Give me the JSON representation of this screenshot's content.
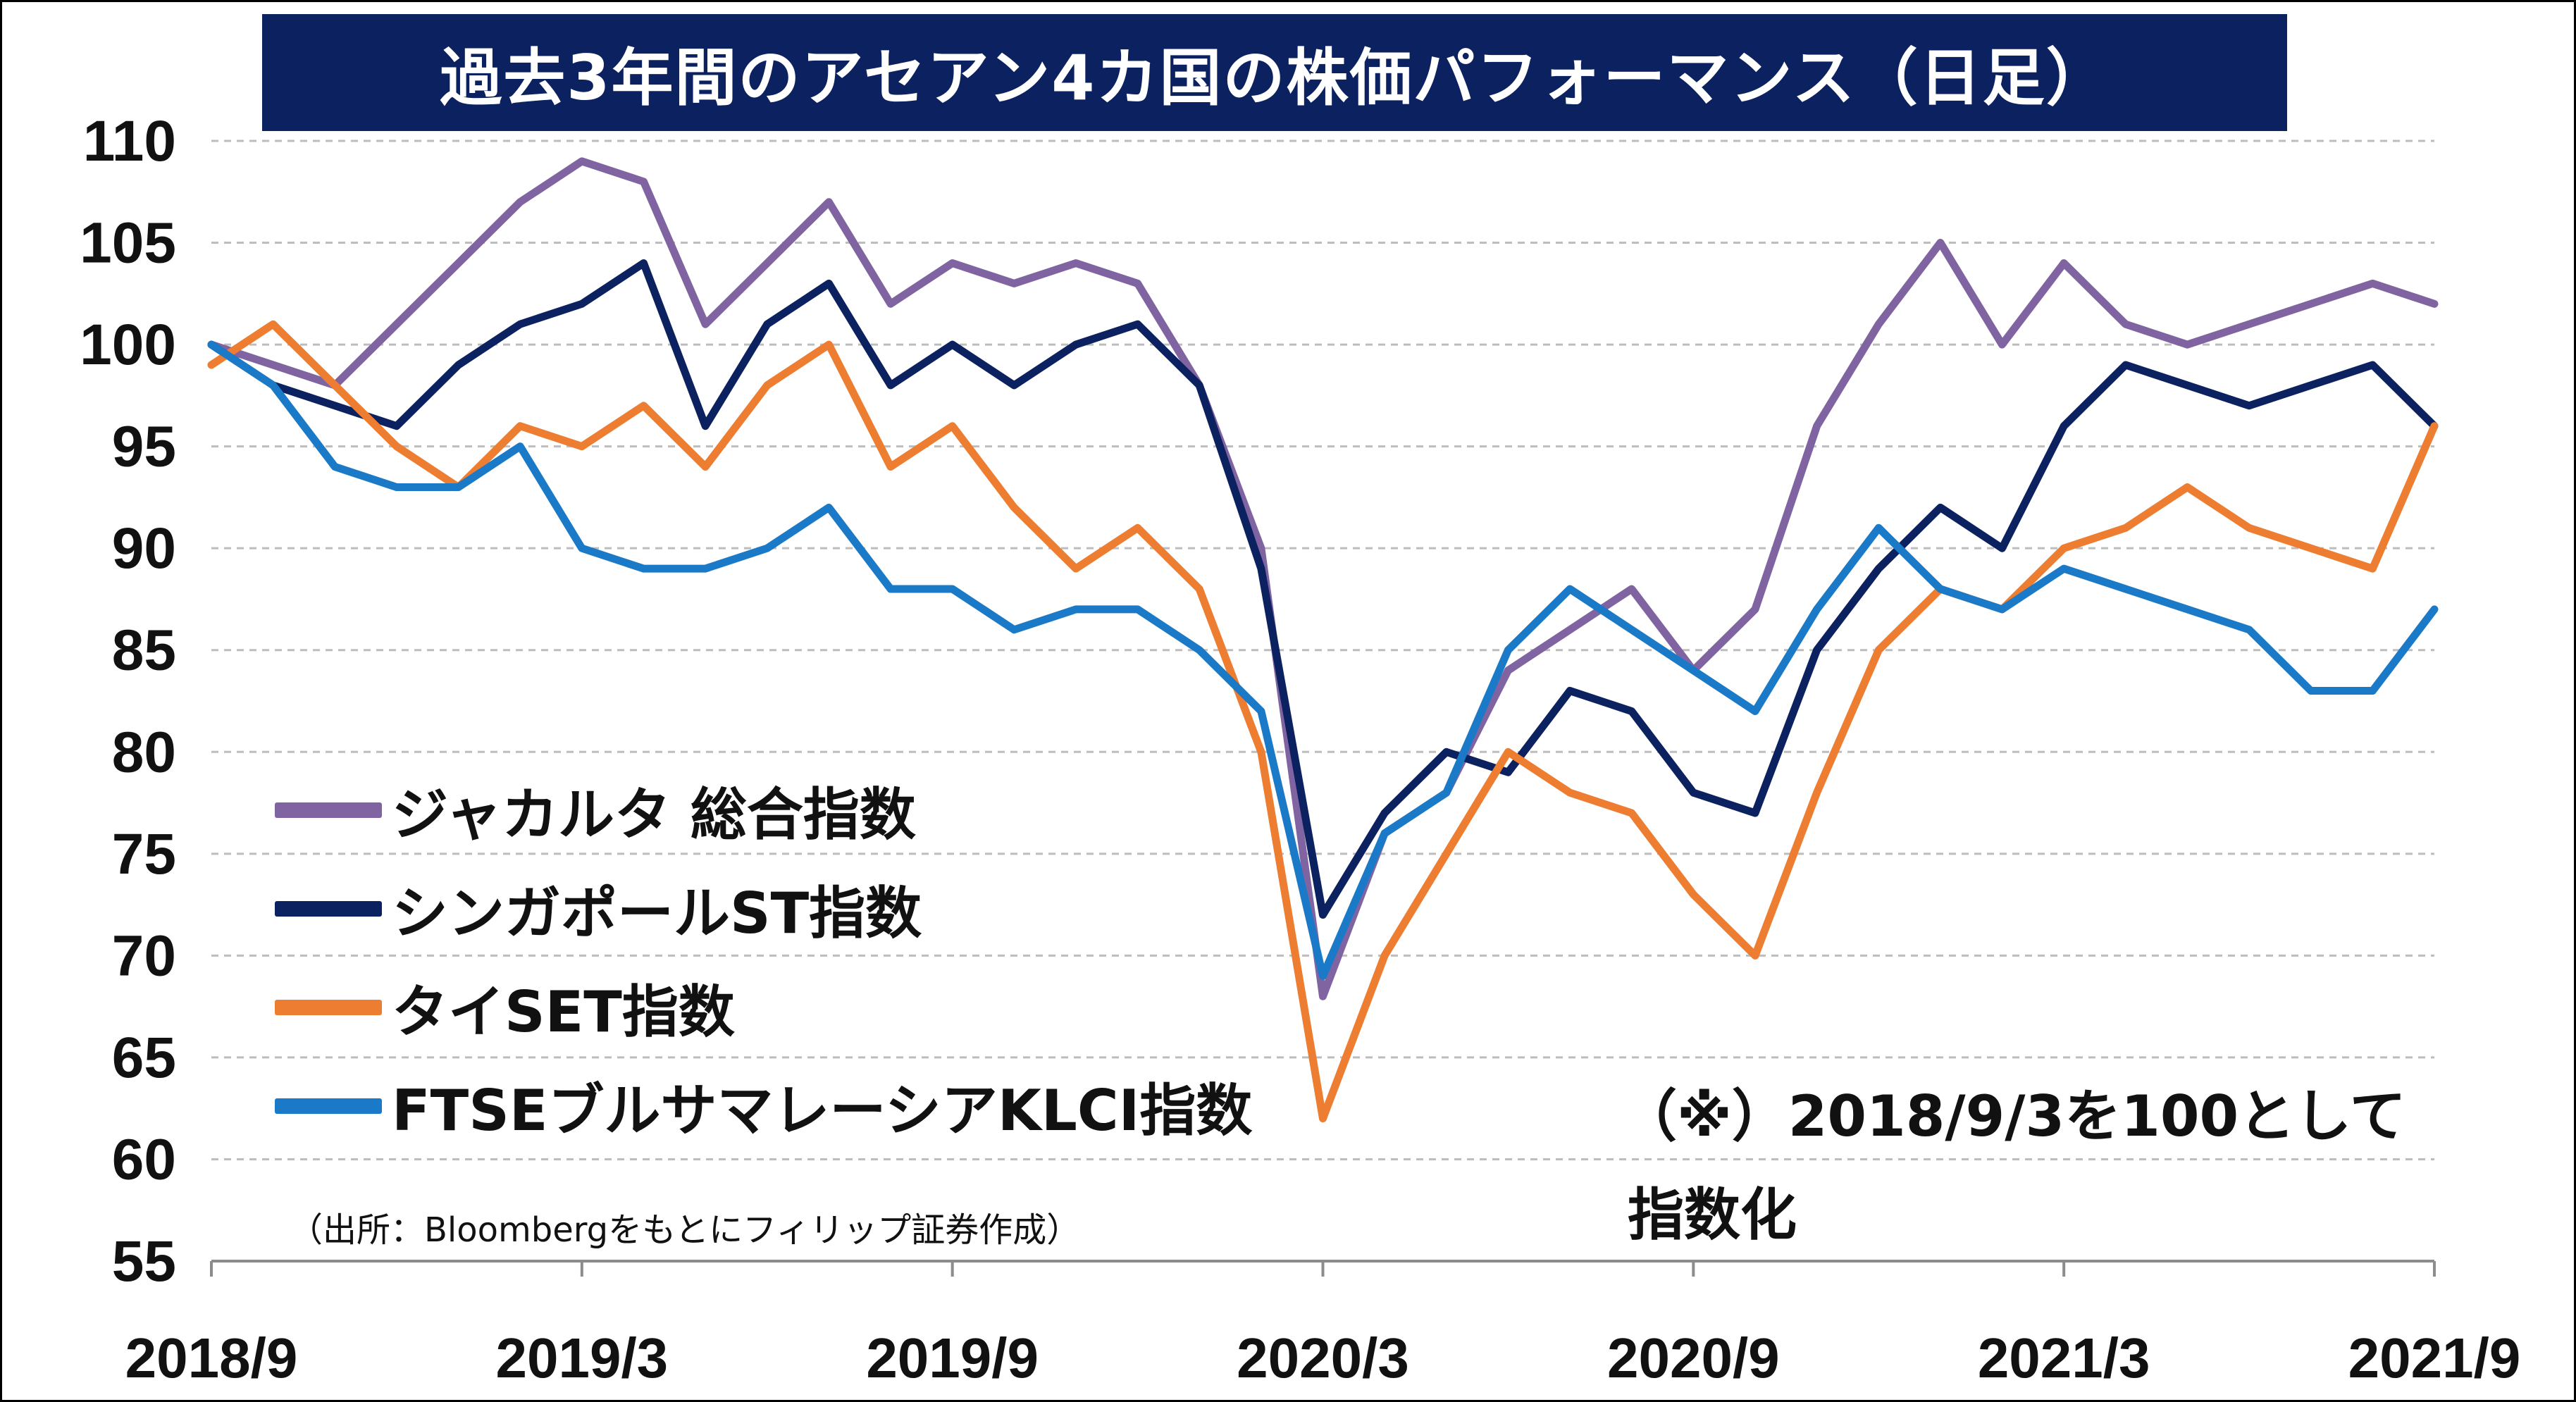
{
  "title": "過去3年間のアセアン4カ国の株価パフォーマンス（日足）",
  "note_line1": "（※）2018/9/3を100として",
  "note_line2": "指数化",
  "source": "（出所：Bloombergをもとにフィリップ証券作成）",
  "chart_data": {
    "type": "line",
    "title": "過去3年間のアセアン4カ国の株価パフォーマンス（日足）",
    "xlabel": "",
    "ylabel": "",
    "ylim": [
      55,
      110
    ],
    "yticks": [
      "110",
      "105",
      "100",
      "95",
      "90",
      "85",
      "80",
      "75",
      "70",
      "65",
      "60",
      "55"
    ],
    "xticks": [
      "2018/9",
      "2019/3",
      "2019/9",
      "2020/3",
      "2020/9",
      "2021/3",
      "2021/9"
    ],
    "grid": "horizontal dashed",
    "legend_position": "lower-left",
    "x": [
      "2018/9",
      "2018/10",
      "2018/11",
      "2018/12",
      "2019/1",
      "2019/2",
      "2019/3",
      "2019/4",
      "2019/5",
      "2019/6",
      "2019/7",
      "2019/8",
      "2019/9",
      "2019/10",
      "2019/11",
      "2019/12",
      "2020/1",
      "2020/2",
      "2020/3",
      "2020/4",
      "2020/5",
      "2020/6",
      "2020/7",
      "2020/8",
      "2020/9",
      "2020/10",
      "2020/11",
      "2020/12",
      "2021/1",
      "2021/2",
      "2021/3",
      "2021/4",
      "2021/5",
      "2021/6",
      "2021/7",
      "2021/8",
      "2021/9"
    ],
    "series": [
      {
        "name": "ジャカルタ 総合指数",
        "color": "#8064a2",
        "values": [
          100,
          99,
          98,
          101,
          104,
          107,
          109,
          108,
          101,
          104,
          107,
          102,
          104,
          103,
          104,
          103,
          98,
          90,
          68,
          76,
          78,
          84,
          86,
          88,
          84,
          87,
          96,
          101,
          105,
          100,
          104,
          101,
          100,
          101,
          102,
          103,
          102
        ]
      },
      {
        "name": "シンガポールST指数",
        "color": "#0b2160",
        "values": [
          100,
          98,
          97,
          96,
          99,
          101,
          102,
          104,
          96,
          101,
          103,
          98,
          100,
          98,
          100,
          101,
          98,
          89,
          72,
          77,
          80,
          79,
          83,
          82,
          78,
          77,
          85,
          89,
          92,
          90,
          96,
          99,
          98,
          97,
          98,
          99,
          96
        ]
      },
      {
        "name": "タイSET指数",
        "color": "#ed7d31",
        "values": [
          99,
          101,
          98,
          95,
          93,
          96,
          95,
          97,
          94,
          98,
          100,
          94,
          96,
          92,
          89,
          91,
          88,
          80,
          62,
          70,
          75,
          80,
          78,
          77,
          73,
          70,
          78,
          85,
          88,
          87,
          90,
          91,
          93,
          91,
          90,
          89,
          96
        ]
      },
      {
        "name": "FTSEブルサマレーシアKLCI指数",
        "color": "#1a7ac7",
        "values": [
          100,
          98,
          94,
          93,
          93,
          95,
          90,
          89,
          89,
          90,
          92,
          88,
          88,
          86,
          87,
          87,
          85,
          82,
          69,
          76,
          78,
          85,
          88,
          86,
          84,
          82,
          87,
          91,
          88,
          87,
          89,
          88,
          87,
          86,
          83,
          83,
          87
        ]
      }
    ]
  }
}
